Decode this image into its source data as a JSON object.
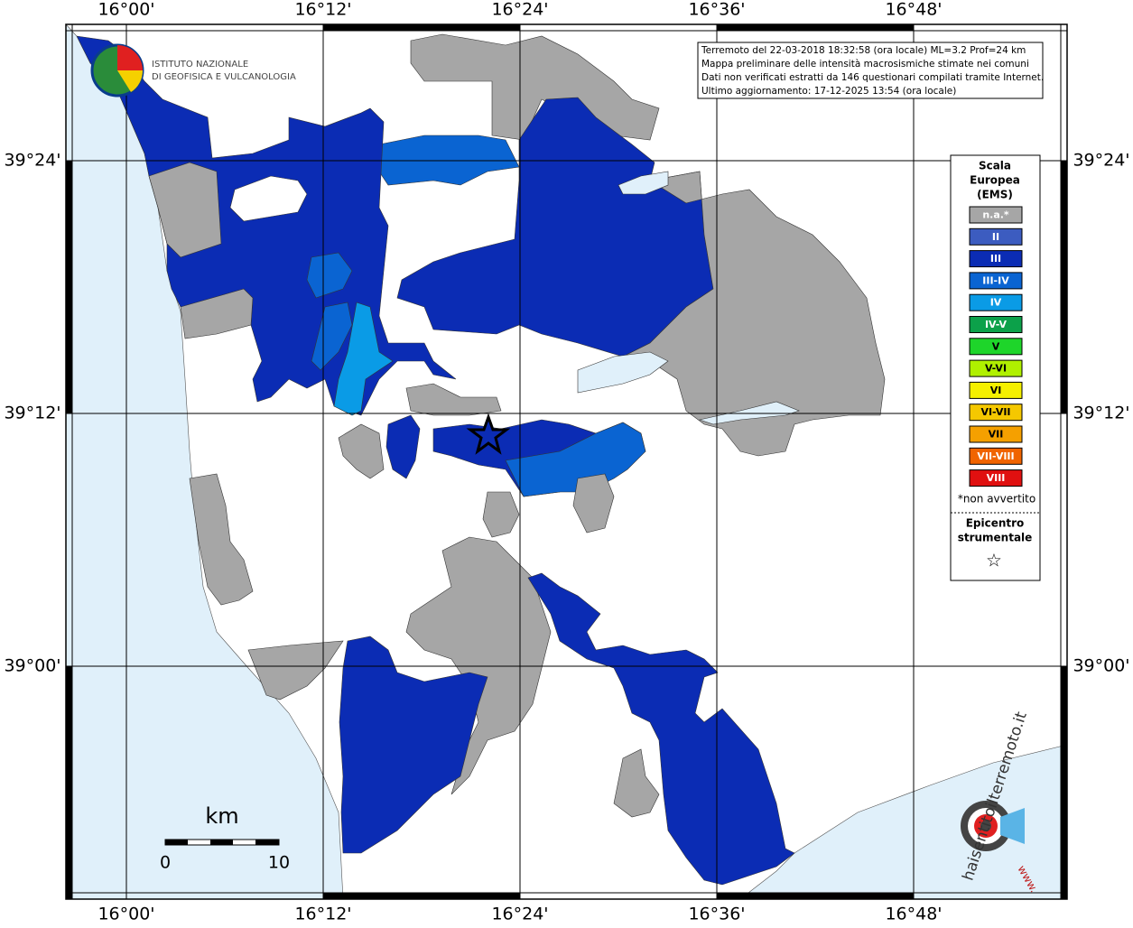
{
  "map": {
    "lon_labels": [
      "16°00'",
      "16°12'",
      "16°24'",
      "16°36'",
      "16°48'"
    ],
    "lat_labels": [
      "39°24'",
      "39°12'",
      "39°00'"
    ],
    "info_lines": [
      "Terremoto del 22-03-2018 18:32:58 (ora locale) ML=3.2 Prof=24 km",
      "Mappa preliminare delle intensità macrosismiche stimate nei comuni",
      "Dati non verificati estratti da 146 questionari compilati tramite Internet.",
      "Ultimo aggiornamento: 17-12-2025 13:54 (ora locale)"
    ],
    "logo_text": [
      "ISTITUTO NAZIONALE",
      "DI GEOFISICA E VULCANOLOGIA"
    ],
    "legend": {
      "title": [
        "Scala",
        "Europea",
        "(EMS)"
      ],
      "items": [
        {
          "label": "n.a.*",
          "color": "#a6a6a6",
          "text_color": "#ffffff"
        },
        {
          "label": "II",
          "color": "#3c5cc0",
          "text_color": "#ffffff"
        },
        {
          "label": "III",
          "color": "#0b2cb4",
          "text_color": "#ffffff"
        },
        {
          "label": "III-IV",
          "color": "#0a64d2",
          "text_color": "#ffffff"
        },
        {
          "label": "IV",
          "color": "#0a9be6",
          "text_color": "#ffffff"
        },
        {
          "label": "IV-V",
          "color": "#0ca14a",
          "text_color": "#ffffff"
        },
        {
          "label": "V",
          "color": "#1ed52a",
          "text_color": "#000000"
        },
        {
          "label": "V-VI",
          "color": "#b0f000",
          "text_color": "#000000"
        },
        {
          "label": "VI",
          "color": "#f5f000",
          "text_color": "#000000"
        },
        {
          "label": "VI-VII",
          "color": "#f5c800",
          "text_color": "#000000"
        },
        {
          "label": "VII",
          "color": "#f5a000",
          "text_color": "#000000"
        },
        {
          "label": "VII-VIII",
          "color": "#f06400",
          "text_color": "#ffffff"
        },
        {
          "label": "VIII",
          "color": "#e01010",
          "text_color": "#ffffff"
        }
      ],
      "note": "*non avvertito",
      "epicenter_title": [
        "Epicentro",
        "strumentale"
      ],
      "epicenter_symbol": "☆"
    },
    "scale_bar": {
      "unit": "km",
      "labels": [
        "0",
        "10"
      ]
    },
    "site_logo": "haisentitoilterremoto.it",
    "site_logo_prefix": "www."
  }
}
